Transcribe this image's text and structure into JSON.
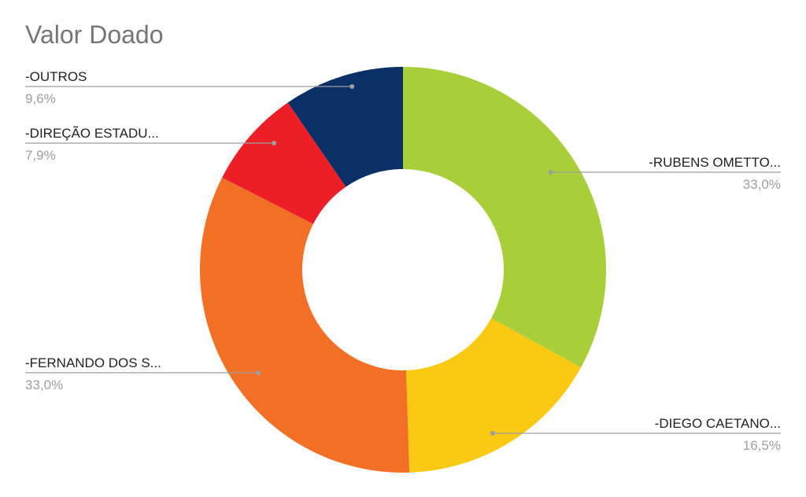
{
  "chart_data": {
    "type": "pie",
    "title": "Valor Doado",
    "donut": true,
    "slices": [
      {
        "label": "-RUBENS OMETTO...",
        "value": 33.0,
        "pct_label": "33,0%",
        "color": "#a8cf3a"
      },
      {
        "label": "-DIEGO CAETANO...",
        "value": 16.5,
        "pct_label": "16,5%",
        "color": "#f9c913"
      },
      {
        "label": "-FERNANDO DOS S...",
        "value": 33.0,
        "pct_label": "33,0%",
        "color": "#f26f26"
      },
      {
        "label": "-DIREÇÃO ESTADU...",
        "value": 7.9,
        "pct_label": "7,9%",
        "color": "#ec1f27"
      },
      {
        "label": "-OUTROS",
        "value": 9.6,
        "pct_label": "9,6%",
        "color": "#0b3068"
      }
    ]
  }
}
